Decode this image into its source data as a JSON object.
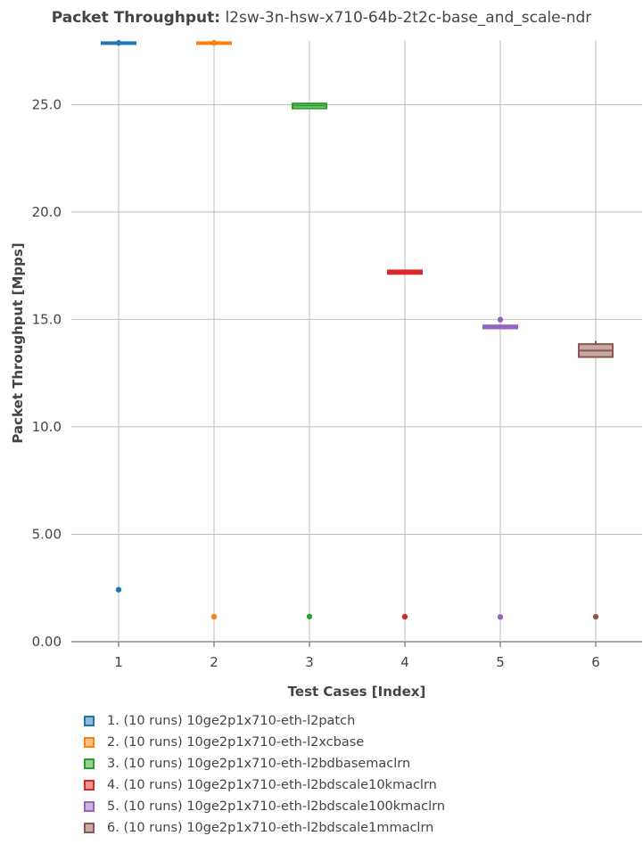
{
  "title": {
    "bold": "Packet Throughput:",
    "rest": "l2sw-3n-hsw-x710-64b-2t2c-base_and_scale-ndr"
  },
  "chart_data": {
    "type": "box",
    "xlabel": "Test Cases [Index]",
    "ylabel": "Packet Throughput [Mpps]",
    "ylim": [
      0,
      28
    ],
    "yticks": [
      "0.00",
      "5.00",
      "10.0",
      "15.0",
      "20.0",
      "25.0"
    ],
    "ytick_values": [
      0,
      5,
      10,
      15,
      20,
      25
    ],
    "categories": [
      "1",
      "2",
      "3",
      "4",
      "5",
      "6"
    ],
    "grid": true,
    "legend_position": "bottom",
    "series": [
      {
        "index": 1,
        "name": "1. (10 runs) 10ge2p1x710-eth-l2patch",
        "color": "#1f77b4",
        "fill": "#8fbbda",
        "q1": 27.84,
        "median": 27.87,
        "q3": 27.9,
        "whisker_low": 27.84,
        "whisker_high": 27.9,
        "outliers": [
          2.42,
          27.87
        ]
      },
      {
        "index": 2,
        "name": "2. (10 runs) 10ge2p1x710-eth-l2xcbase",
        "color": "#ff7f0e",
        "fill": "#ffbf87",
        "q1": 27.84,
        "median": 27.87,
        "q3": 27.9,
        "whisker_low": 27.84,
        "whisker_high": 27.9,
        "outliers": [
          1.16,
          27.87
        ]
      },
      {
        "index": 3,
        "name": "3. (10 runs) 10ge2p1x710-eth-l2bdbasemaclrn",
        "color": "#2ca02c",
        "fill": "#96cf96",
        "q1": 24.82,
        "median": 24.95,
        "q3": 25.05,
        "whisker_low": 24.82,
        "whisker_high": 25.05,
        "outliers": [
          1.17
        ]
      },
      {
        "index": 4,
        "name": "4. (10 runs) 10ge2p1x710-eth-l2bdscale10kmaclrn",
        "color": "#d62728",
        "fill": "#ea9393",
        "q1": 17.12,
        "median": 17.2,
        "q3": 17.28,
        "whisker_low": 17.12,
        "whisker_high": 17.28,
        "outliers": [
          1.16
        ]
      },
      {
        "index": 5,
        "name": "5. (10 runs) 10ge2p1x710-eth-l2bdscale100kmaclrn",
        "color": "#9467bd",
        "fill": "#c9b3de",
        "q1": 14.58,
        "median": 14.66,
        "q3": 14.72,
        "whisker_low": 14.58,
        "whisker_high": 14.72,
        "outliers": [
          1.15,
          14.99
        ]
      },
      {
        "index": 6,
        "name": "6. (10 runs) 10ge2p1x710-eth-l2bdscale1mmaclrn",
        "color": "#8c564b",
        "fill": "#c5aaa5",
        "q1": 13.25,
        "median": 13.55,
        "q3": 13.85,
        "whisker_low": 13.25,
        "whisker_high": 14.0,
        "outliers": [
          1.16
        ]
      }
    ]
  }
}
